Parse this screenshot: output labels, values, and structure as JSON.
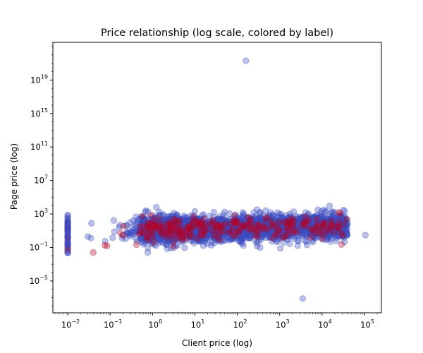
{
  "chart_data": {
    "type": "scatter",
    "title": "Price relationship (log scale, colored by label)",
    "xlabel": "Client price (log)",
    "ylabel": "Page price (log)",
    "xscale": "log",
    "yscale": "log",
    "xlim_log10": [
      -2.35,
      5.4
    ],
    "ylim_log10": [
      -8.8,
      23.5
    ],
    "x_ticks": [
      {
        "base": "10",
        "exp": "−2",
        "value": 0.01
      },
      {
        "base": "10",
        "exp": "−1",
        "value": 0.1
      },
      {
        "base": "10",
        "exp": "0",
        "value": 1
      },
      {
        "base": "10",
        "exp": "1",
        "value": 10
      },
      {
        "base": "10",
        "exp": "2",
        "value": 100
      },
      {
        "base": "10",
        "exp": "3",
        "value": 1000
      },
      {
        "base": "10",
        "exp": "4",
        "value": 10000
      },
      {
        "base": "10",
        "exp": "5",
        "value": 100000
      }
    ],
    "y_ticks": [
      {
        "base": "10",
        "exp": "−5",
        "value": 1e-05
      },
      {
        "base": "10",
        "exp": "−1",
        "value": 0.1
      },
      {
        "base": "10",
        "exp": "3",
        "value": 1000
      },
      {
        "base": "10",
        "exp": "7",
        "value": 10000000
      },
      {
        "base": "10",
        "exp": "11",
        "value": 100000000000
      },
      {
        "base": "10",
        "exp": "15",
        "value": 1000000000000000
      },
      {
        "base": "10",
        "exp": "19",
        "value": 10000000000000000000
      }
    ],
    "grid": false,
    "legend": "none",
    "colors": {
      "label_0": "#3b4cc0",
      "label_1": "#b40426"
    },
    "marker_alpha": 0.35,
    "main_cloud": {
      "description_ranges_log10": {
        "x": [
          -0.3,
          4.6
        ],
        "y": [
          -1.6,
          3.8
        ]
      },
      "approx_points_label_0": 2500,
      "approx_points_label_1": 260
    },
    "notable_points": [
      {
        "x": 160,
        "y": 2e+21,
        "label": 0
      },
      {
        "x": 3500,
        "y": 8e-08,
        "label": 0
      },
      {
        "x": 105000,
        "y": 3.0,
        "label": 0
      },
      {
        "x": 15000,
        "y": 9000,
        "label": 0
      },
      {
        "x": 25000,
        "y": 1600,
        "label": 1
      },
      {
        "x": 0.04,
        "y": 0.025,
        "label": 1
      },
      {
        "x": 0.075,
        "y": 0.18,
        "label": 1
      },
      {
        "x": 0.085,
        "y": 0.15,
        "label": 1
      },
      {
        "x": 0.03,
        "y": 2.0,
        "label": 0
      },
      {
        "x": 0.035,
        "y": 1.3,
        "label": 0
      },
      {
        "x": 0.3,
        "y": 100,
        "label": 0
      },
      {
        "x": 0.7,
        "y": 2500,
        "label": 0
      }
    ],
    "cluster_at_x_0.01": {
      "x": 0.01,
      "y_range": [
        0.02,
        800
      ],
      "approx_points": 60,
      "label_1_fraction": 0.25
    }
  }
}
